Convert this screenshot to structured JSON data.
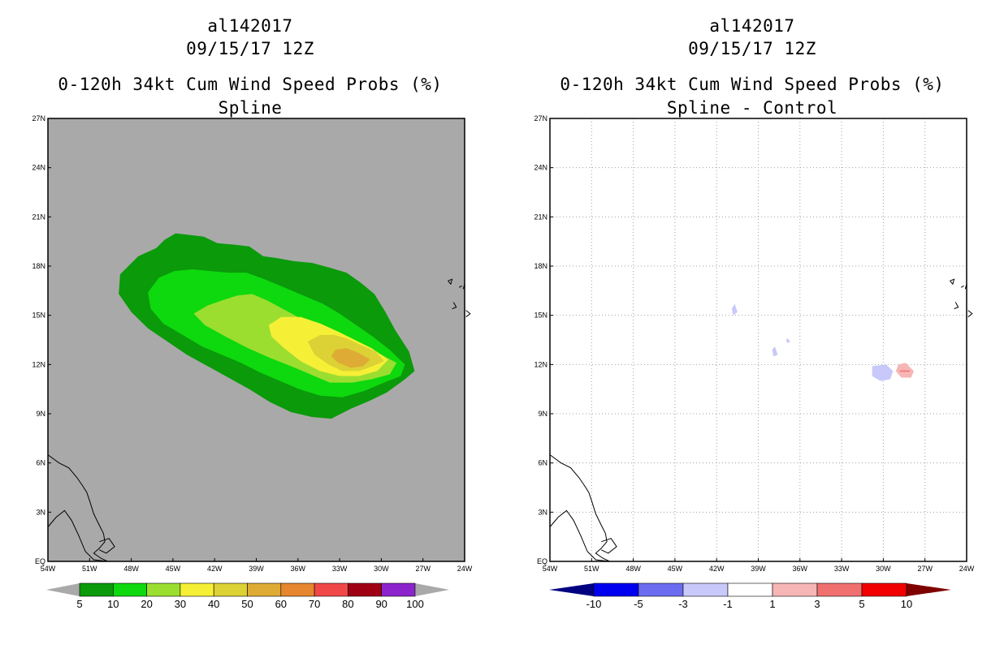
{
  "chart_data": [
    {
      "type": "heatmap",
      "storm_id": "al142017",
      "datetime": "09/15/17 12Z",
      "title": "0-120h 34kt Cum Wind Speed Probs (%)",
      "subtitle": "Spline",
      "xlim": [
        -54,
        -24
      ],
      "ylim": [
        0,
        27
      ],
      "x_tick_labels": [
        "54W",
        "51W",
        "48W",
        "45W",
        "42W",
        "39W",
        "36W",
        "33W",
        "30W",
        "27W",
        "24W"
      ],
      "y_tick_labels": [
        "EQ",
        "3N",
        "6N",
        "9N",
        "12N",
        "15N",
        "18N",
        "21N",
        "24N",
        "27N"
      ],
      "grid": false,
      "background_color": "#a9a9a9",
      "contours": [
        {
          "level": 5,
          "color": "#0a9a0a",
          "lonlat": [
            [
              -48.8,
              17.5
            ],
            [
              -47.5,
              18.6
            ],
            [
              -46.2,
              19.1
            ],
            [
              -45.6,
              19.6
            ],
            [
              -44.8,
              20
            ],
            [
              -43.8,
              19.9
            ],
            [
              -42.8,
              19.8
            ],
            [
              -41.8,
              19.4
            ],
            [
              -40.5,
              19.3
            ],
            [
              -39.5,
              19.2
            ],
            [
              -38.5,
              18.6
            ],
            [
              -37.6,
              18.5
            ],
            [
              -36.3,
              18.3
            ],
            [
              -35,
              18.2
            ],
            [
              -33.7,
              17.9
            ],
            [
              -32.5,
              17.6
            ],
            [
              -31.5,
              17
            ],
            [
              -30.5,
              16.3
            ],
            [
              -29.7,
              15.2
            ],
            [
              -29,
              14.1
            ],
            [
              -28,
              12.8
            ],
            [
              -27.6,
              11.6
            ],
            [
              -28.3,
              11.1
            ],
            [
              -29.6,
              10.3
            ],
            [
              -30.8,
              9.8
            ],
            [
              -32.2,
              9.3
            ],
            [
              -33.6,
              8.7
            ],
            [
              -35,
              8.8
            ],
            [
              -36.5,
              9.1
            ],
            [
              -38,
              9.7
            ],
            [
              -39.5,
              10.5
            ],
            [
              -41,
              11.2
            ],
            [
              -42.5,
              11.9
            ],
            [
              -44,
              12.6
            ],
            [
              -45.4,
              13.4
            ],
            [
              -46.8,
              14.2
            ],
            [
              -48,
              15.2
            ],
            [
              -48.9,
              16.3
            ]
          ]
        },
        {
          "level": 10,
          "color": "#0ed80e",
          "lonlat": [
            [
              -46.8,
              16.4
            ],
            [
              -46,
              17.3
            ],
            [
              -44.9,
              17.7
            ],
            [
              -43.6,
              17.8
            ],
            [
              -42.3,
              17.7
            ],
            [
              -41,
              17.6
            ],
            [
              -39.7,
              17.6
            ],
            [
              -38.4,
              17.2
            ],
            [
              -37,
              16.7
            ],
            [
              -35.6,
              16.2
            ],
            [
              -34.2,
              15.7
            ],
            [
              -33,
              15.1
            ],
            [
              -31.8,
              14.4
            ],
            [
              -30.6,
              13.7
            ],
            [
              -29.4,
              12.9
            ],
            [
              -28.3,
              12
            ],
            [
              -28.6,
              11.3
            ],
            [
              -29.8,
              10.9
            ],
            [
              -31.2,
              10.4
            ],
            [
              -32.8,
              10
            ],
            [
              -34.4,
              10.1
            ],
            [
              -35.9,
              10.5
            ],
            [
              -37.3,
              11
            ],
            [
              -38.7,
              11.5
            ],
            [
              -40.1,
              12.1
            ],
            [
              -41.5,
              12.6
            ],
            [
              -42.9,
              13.1
            ],
            [
              -44.3,
              13.8
            ],
            [
              -45.7,
              14.5
            ],
            [
              -46.6,
              15.4
            ]
          ]
        },
        {
          "level": 20,
          "color": "#9bde30",
          "lonlat": [
            [
              -43.5,
              15.1
            ],
            [
              -42.5,
              15.6
            ],
            [
              -41.5,
              15.9
            ],
            [
              -40.4,
              16.2
            ],
            [
              -39.3,
              16.3
            ],
            [
              -38.2,
              15.9
            ],
            [
              -37.1,
              15.4
            ],
            [
              -36,
              14.9
            ],
            [
              -34.9,
              14.5
            ],
            [
              -33.7,
              14.2
            ],
            [
              -32.6,
              13.7
            ],
            [
              -31.4,
              13.2
            ],
            [
              -30.2,
              12.7
            ],
            [
              -28.9,
              12.1
            ],
            [
              -29.4,
              11.4
            ],
            [
              -30.7,
              11.1
            ],
            [
              -32.1,
              10.9
            ],
            [
              -33.7,
              10.9
            ],
            [
              -35.1,
              11.4
            ],
            [
              -36.5,
              11.9
            ],
            [
              -38,
              12.4
            ],
            [
              -39.6,
              13
            ],
            [
              -41.2,
              13.7
            ],
            [
              -42.7,
              14.4
            ]
          ]
        },
        {
          "level": 30,
          "color": "#f5f036",
          "lonlat": [
            [
              -38.1,
              14.4
            ],
            [
              -37.2,
              14.9
            ],
            [
              -35.8,
              14.9
            ],
            [
              -34.4,
              14.5
            ],
            [
              -33.1,
              14
            ],
            [
              -31.9,
              13.5
            ],
            [
              -30.7,
              13
            ],
            [
              -29.5,
              12.3
            ],
            [
              -30.3,
              11.6
            ],
            [
              -31.6,
              11.3
            ],
            [
              -33,
              11.3
            ],
            [
              -34.4,
              11.6
            ],
            [
              -35.8,
              12.2
            ],
            [
              -37,
              13
            ],
            [
              -37.9,
              13.7
            ]
          ]
        },
        {
          "level": 40,
          "color": "#dcd135",
          "lonlat": [
            [
              -35.3,
              13.4
            ],
            [
              -34.4,
              13.8
            ],
            [
              -33.4,
              13.8
            ],
            [
              -32.5,
              13.6
            ],
            [
              -31.5,
              13.2
            ],
            [
              -30.4,
              12.8
            ],
            [
              -29.8,
              12.2
            ],
            [
              -30.6,
              11.9
            ],
            [
              -31.6,
              11.6
            ],
            [
              -32.8,
              11.6
            ],
            [
              -33.8,
              12
            ],
            [
              -34.8,
              12.6
            ]
          ]
        },
        {
          "level": 50,
          "color": "#deac34",
          "lonlat": [
            [
              -33.3,
              12.9
            ],
            [
              -32.5,
              13
            ],
            [
              -31.6,
              12.7
            ],
            [
              -30.8,
              12.3
            ],
            [
              -31.3,
              11.9
            ],
            [
              -32.2,
              11.8
            ],
            [
              -33.1,
              12.1
            ],
            [
              -33.6,
              12.5
            ]
          ]
        }
      ],
      "colorbar": {
        "labels": [
          "5",
          "10",
          "20",
          "30",
          "40",
          "50",
          "60",
          "70",
          "80",
          "90",
          "100"
        ],
        "colors": [
          "#0a9a0a",
          "#0ed80e",
          "#9bde30",
          "#f5f036",
          "#dcd135",
          "#deac34",
          "#e6862e",
          "#f04848",
          "#a00014",
          "#8c24cc"
        ],
        "end_colors": [
          "#a9a9a9",
          "#a9a9a9"
        ]
      }
    },
    {
      "type": "heatmap",
      "storm_id": "al142017",
      "datetime": "09/15/17 12Z",
      "title": "0-120h 34kt Cum Wind Speed Probs (%)",
      "subtitle": "Spline - Control",
      "xlim": [
        -54,
        -24
      ],
      "ylim": [
        0,
        27
      ],
      "x_tick_labels": [
        "54W",
        "51W",
        "48W",
        "45W",
        "42W",
        "39W",
        "36W",
        "33W",
        "30W",
        "27W",
        "24W"
      ],
      "y_tick_labels": [
        "EQ",
        "3N",
        "6N",
        "9N",
        "12N",
        "15N",
        "18N",
        "21N",
        "24N",
        "27N"
      ],
      "grid": true,
      "background_color": "#ffffff",
      "contours": [
        {
          "level": -1,
          "color": "#c8c8fa",
          "lonlat": [
            [
              -40.7,
              15.7
            ],
            [
              -40.5,
              15.2
            ],
            [
              -40.8,
              15
            ],
            [
              -40.9,
              15.4
            ]
          ]
        },
        {
          "level": -1,
          "color": "#c8c8fa",
          "lonlat": [
            [
              -37.8,
              13.1
            ],
            [
              -37.6,
              12.6
            ],
            [
              -37.9,
              12.5
            ],
            [
              -38,
              12.9
            ]
          ]
        },
        {
          "level": -1,
          "color": "#c8c8fa",
          "lonlat": [
            [
              -36.9,
              13.6
            ],
            [
              -36.7,
              13.4
            ],
            [
              -36.9,
              13.3
            ],
            [
              -37,
              13.5
            ]
          ]
        },
        {
          "level": -1,
          "color": "#c8c8fa",
          "lonlat": [
            [
              -29.8,
              12
            ],
            [
              -29.3,
              11.6
            ],
            [
              -29.5,
              11.1
            ],
            [
              -30.2,
              11
            ],
            [
              -30.8,
              11.3
            ],
            [
              -30.8,
              11.9
            ]
          ]
        },
        {
          "level": 1,
          "color": "#f6b6b6",
          "lonlat": [
            [
              -28.4,
              12.1
            ],
            [
              -27.8,
              11.6
            ],
            [
              -28,
              11.2
            ],
            [
              -28.7,
              11.2
            ],
            [
              -29.1,
              11.6
            ],
            [
              -28.9,
              12
            ]
          ]
        }
      ],
      "small_features": [
        {
          "level": 3,
          "color": "#f07070",
          "lonlat": [
            [
              -28.8,
              11.6
            ],
            [
              -28.1,
              11.6
            ]
          ]
        }
      ],
      "colorbar": {
        "labels": [
          "-10",
          "-5",
          "-3",
          "-1",
          "1",
          "3",
          "5",
          "10"
        ],
        "colors": [
          "#0000f0",
          "#6c6cf0",
          "#c8c8fa",
          "#ffffff",
          "#f6b6b6",
          "#f07070",
          "#f00000"
        ],
        "end_colors": [
          "#000080",
          "#800000"
        ]
      }
    }
  ]
}
